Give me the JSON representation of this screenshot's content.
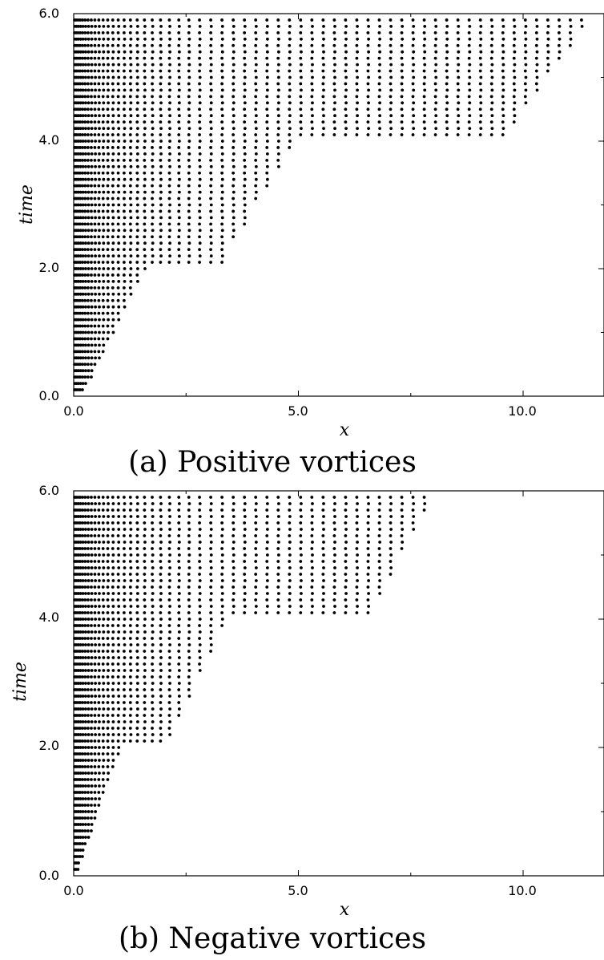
{
  "chart_data": [
    {
      "type": "scatter",
      "caption": "(a) Positive vortices",
      "xlabel": "x",
      "ylabel": "time",
      "xlim": [
        0,
        11.8
      ],
      "ylim": [
        0,
        6
      ],
      "xticks": [
        "0.0",
        "5.0",
        "10.0"
      ],
      "yticks": [
        "0.0",
        "2.0",
        "4.0",
        "6.0"
      ],
      "grid": false,
      "legend": "none",
      "marker_color": "#000000",
      "structure": {
        "time_step": 0.1,
        "stage_times": [
          0.0,
          2.0,
          4.0
        ],
        "envelope_points": [
          {
            "time": 0.1,
            "x": 0.25
          },
          {
            "time": 2.0,
            "x": 1.6
          },
          {
            "time": 2.1,
            "x": 3.3
          },
          {
            "time": 4.0,
            "x": 4.9
          },
          {
            "time": 4.1,
            "x": 9.6
          },
          {
            "time": 5.9,
            "x": 11.5
          }
        ]
      }
    },
    {
      "type": "scatter",
      "caption": "(b) Negative vortices",
      "xlabel": "x",
      "ylabel": "time",
      "xlim": [
        0,
        11.8
      ],
      "ylim": [
        0,
        6
      ],
      "xticks": [
        "0.0",
        "5.0",
        "10.0"
      ],
      "yticks": [
        "0.0",
        "2.0",
        "4.0",
        "6.0"
      ],
      "grid": false,
      "legend": "none",
      "marker_color": "#000000",
      "structure": {
        "time_step": 0.1,
        "stage_times": [
          0.0,
          2.0,
          4.0
        ],
        "envelope_points": [
          {
            "time": 0.1,
            "x": 0.1
          },
          {
            "time": 2.0,
            "x": 1.05
          },
          {
            "time": 2.1,
            "x": 2.1
          },
          {
            "time": 4.0,
            "x": 3.4
          },
          {
            "time": 4.1,
            "x": 6.6
          },
          {
            "time": 5.9,
            "x": 8.0
          }
        ]
      }
    }
  ]
}
